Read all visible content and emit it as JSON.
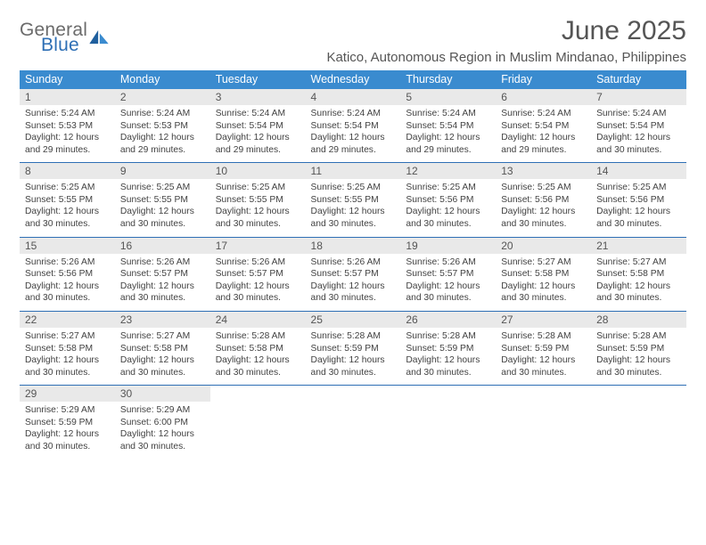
{
  "logo": {
    "general": "General",
    "blue": "Blue"
  },
  "title": "June 2025",
  "location": "Katico, Autonomous Region in Muslim Mindanao, Philippines",
  "columns": [
    "Sunday",
    "Monday",
    "Tuesday",
    "Wednesday",
    "Thursday",
    "Friday",
    "Saturday"
  ],
  "colors": {
    "header_bg": "#3a8bcf",
    "header_text": "#ffffff",
    "daynum_bg": "#e9e9e9",
    "rule": "#2e6fb5",
    "logo_gray": "#6b6b6b",
    "logo_blue": "#2e6fb5"
  },
  "days": [
    {
      "n": "1",
      "sunrise": "5:24 AM",
      "sunset": "5:53 PM",
      "daylight": "12 hours and 29 minutes."
    },
    {
      "n": "2",
      "sunrise": "5:24 AM",
      "sunset": "5:53 PM",
      "daylight": "12 hours and 29 minutes."
    },
    {
      "n": "3",
      "sunrise": "5:24 AM",
      "sunset": "5:54 PM",
      "daylight": "12 hours and 29 minutes."
    },
    {
      "n": "4",
      "sunrise": "5:24 AM",
      "sunset": "5:54 PM",
      "daylight": "12 hours and 29 minutes."
    },
    {
      "n": "5",
      "sunrise": "5:24 AM",
      "sunset": "5:54 PM",
      "daylight": "12 hours and 29 minutes."
    },
    {
      "n": "6",
      "sunrise": "5:24 AM",
      "sunset": "5:54 PM",
      "daylight": "12 hours and 29 minutes."
    },
    {
      "n": "7",
      "sunrise": "5:24 AM",
      "sunset": "5:54 PM",
      "daylight": "12 hours and 30 minutes."
    },
    {
      "n": "8",
      "sunrise": "5:25 AM",
      "sunset": "5:55 PM",
      "daylight": "12 hours and 30 minutes."
    },
    {
      "n": "9",
      "sunrise": "5:25 AM",
      "sunset": "5:55 PM",
      "daylight": "12 hours and 30 minutes."
    },
    {
      "n": "10",
      "sunrise": "5:25 AM",
      "sunset": "5:55 PM",
      "daylight": "12 hours and 30 minutes."
    },
    {
      "n": "11",
      "sunrise": "5:25 AM",
      "sunset": "5:55 PM",
      "daylight": "12 hours and 30 minutes."
    },
    {
      "n": "12",
      "sunrise": "5:25 AM",
      "sunset": "5:56 PM",
      "daylight": "12 hours and 30 minutes."
    },
    {
      "n": "13",
      "sunrise": "5:25 AM",
      "sunset": "5:56 PM",
      "daylight": "12 hours and 30 minutes."
    },
    {
      "n": "14",
      "sunrise": "5:25 AM",
      "sunset": "5:56 PM",
      "daylight": "12 hours and 30 minutes."
    },
    {
      "n": "15",
      "sunrise": "5:26 AM",
      "sunset": "5:56 PM",
      "daylight": "12 hours and 30 minutes."
    },
    {
      "n": "16",
      "sunrise": "5:26 AM",
      "sunset": "5:57 PM",
      "daylight": "12 hours and 30 minutes."
    },
    {
      "n": "17",
      "sunrise": "5:26 AM",
      "sunset": "5:57 PM",
      "daylight": "12 hours and 30 minutes."
    },
    {
      "n": "18",
      "sunrise": "5:26 AM",
      "sunset": "5:57 PM",
      "daylight": "12 hours and 30 minutes."
    },
    {
      "n": "19",
      "sunrise": "5:26 AM",
      "sunset": "5:57 PM",
      "daylight": "12 hours and 30 minutes."
    },
    {
      "n": "20",
      "sunrise": "5:27 AM",
      "sunset": "5:58 PM",
      "daylight": "12 hours and 30 minutes."
    },
    {
      "n": "21",
      "sunrise": "5:27 AM",
      "sunset": "5:58 PM",
      "daylight": "12 hours and 30 minutes."
    },
    {
      "n": "22",
      "sunrise": "5:27 AM",
      "sunset": "5:58 PM",
      "daylight": "12 hours and 30 minutes."
    },
    {
      "n": "23",
      "sunrise": "5:27 AM",
      "sunset": "5:58 PM",
      "daylight": "12 hours and 30 minutes."
    },
    {
      "n": "24",
      "sunrise": "5:28 AM",
      "sunset": "5:58 PM",
      "daylight": "12 hours and 30 minutes."
    },
    {
      "n": "25",
      "sunrise": "5:28 AM",
      "sunset": "5:59 PM",
      "daylight": "12 hours and 30 minutes."
    },
    {
      "n": "26",
      "sunrise": "5:28 AM",
      "sunset": "5:59 PM",
      "daylight": "12 hours and 30 minutes."
    },
    {
      "n": "27",
      "sunrise": "5:28 AM",
      "sunset": "5:59 PM",
      "daylight": "12 hours and 30 minutes."
    },
    {
      "n": "28",
      "sunrise": "5:28 AM",
      "sunset": "5:59 PM",
      "daylight": "12 hours and 30 minutes."
    },
    {
      "n": "29",
      "sunrise": "5:29 AM",
      "sunset": "5:59 PM",
      "daylight": "12 hours and 30 minutes."
    },
    {
      "n": "30",
      "sunrise": "5:29 AM",
      "sunset": "6:00 PM",
      "daylight": "12 hours and 30 minutes."
    }
  ],
  "labels": {
    "sunrise": "Sunrise: ",
    "sunset": "Sunset: ",
    "daylight": "Daylight: "
  }
}
